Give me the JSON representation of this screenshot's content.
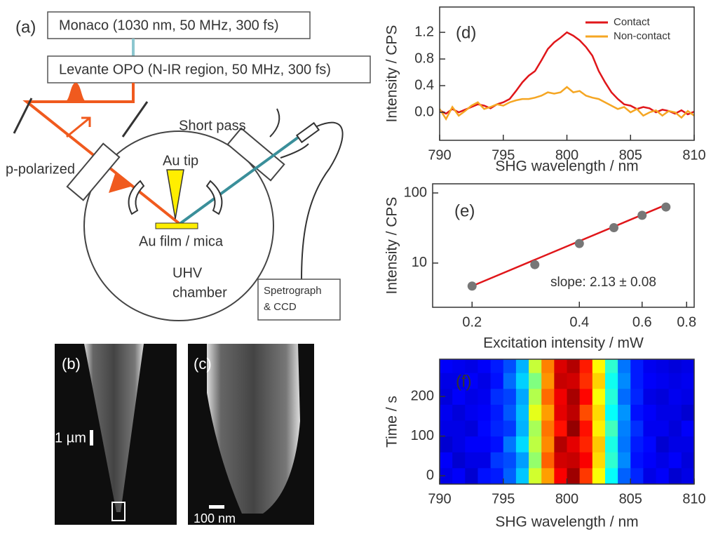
{
  "diagram": {
    "panel_label": "(a)",
    "box_monaco": "Monaco (1030 nm, 50 MHz, 300 fs)",
    "box_levante": "Levante OPO (N-IR region, 50 MHz, 300 fs)",
    "short_pass": "Short pass",
    "p_polarized": "p-polarized",
    "au_tip": "Au tip",
    "au_film": "Au film / mica",
    "uhv": "UHV",
    "chamber": "chamber",
    "spectrograph": "Spetrograph",
    "ccd": "& CCD"
  },
  "images": [
    {
      "panel_label": "(b)",
      "scale_bar": "1 µm"
    },
    {
      "panel_label": "(c)",
      "scale_bar": "100 nm"
    }
  ],
  "chart_data": [
    {
      "type": "line",
      "panel_label": "(d)",
      "xlabel": "SHG wavelength / nm",
      "ylabel": "Intensity / CPS",
      "legend": "upper right",
      "x": [
        790,
        790.5,
        791,
        791.5,
        792,
        792.5,
        793,
        793.5,
        794,
        794.5,
        795,
        795.5,
        796,
        796.5,
        797,
        797.5,
        798,
        798.5,
        799,
        799.5,
        800,
        800.5,
        801,
        801.5,
        802,
        802.5,
        803,
        803.5,
        804,
        804.5,
        805,
        805.5,
        806,
        806.5,
        807,
        807.5,
        808,
        808.5,
        809,
        809.5,
        810
      ],
      "xlim": [
        790,
        810
      ],
      "xticks": [
        790,
        795,
        800,
        805,
        810
      ],
      "ylim": [
        -0.42,
        1.58
      ],
      "yticks": [
        {
          "value": 0,
          "label": "0.0"
        },
        0.4,
        0.8,
        1.2
      ],
      "series": [
        {
          "name": "Contact",
          "color": "#e0161a",
          "values": [
            0.03,
            -0.02,
            0.05,
            0.0,
            0.04,
            0.08,
            0.12,
            0.1,
            0.06,
            0.12,
            0.15,
            0.2,
            0.32,
            0.45,
            0.55,
            0.62,
            0.78,
            0.95,
            1.05,
            1.12,
            1.2,
            1.15,
            1.08,
            0.98,
            0.85,
            0.62,
            0.45,
            0.3,
            0.2,
            0.12,
            0.1,
            0.05,
            0.08,
            0.06,
            0.0,
            0.04,
            0.02,
            -0.02,
            0.03,
            -0.03,
            0.01
          ]
        },
        {
          "name": "Non-contact",
          "color": "#f5a623",
          "values": [
            0.05,
            -0.1,
            0.08,
            -0.05,
            0.02,
            0.1,
            0.15,
            0.05,
            0.08,
            0.12,
            0.1,
            0.15,
            0.18,
            0.2,
            0.2,
            0.22,
            0.25,
            0.3,
            0.28,
            0.3,
            0.38,
            0.3,
            0.32,
            0.25,
            0.22,
            0.2,
            0.15,
            0.1,
            0.05,
            0.08,
            0.0,
            0.05,
            -0.05,
            0.0,
            0.03,
            -0.05,
            0.02,
            0.0,
            -0.08,
            0.02,
            -0.05
          ]
        }
      ]
    },
    {
      "type": "scatter",
      "panel_label": "(e)",
      "xlabel": "Excitation intensity / mW",
      "ylabel": "Intensity / CPS",
      "log": true,
      "xlim": [
        0.155,
        0.84
      ],
      "xticks": [
        0.2,
        0.4,
        0.6,
        0.8
      ],
      "ylim": [
        2.34,
        135
      ],
      "yticks": [
        10,
        100
      ],
      "series": [
        {
          "color": "#777777",
          "x": [
            0.2,
            0.3,
            0.4,
            0.5,
            0.6,
            0.7
          ],
          "values": [
            4.7,
            9.5,
            19,
            32,
            48,
            63
          ]
        }
      ],
      "fit": {
        "color": "#e0161a",
        "x": [
          0.2,
          0.7
        ],
        "values": [
          4.7,
          67.7
        ]
      },
      "annotation": "slope: 2.13 ± 0.08"
    },
    {
      "type": "heatmap",
      "panel_label": "(f)",
      "xlabel": "SHG wavelength / nm",
      "ylabel": "Time / s",
      "xlim": [
        790,
        810
      ],
      "xticks": [
        790,
        795,
        800,
        805,
        810
      ],
      "ylim": [
        -21,
        294
      ],
      "yticks": [
        0,
        100,
        200
      ],
      "x_bins": [
        790,
        791,
        792,
        793,
        794,
        795,
        796,
        797,
        798,
        799,
        800,
        801,
        802,
        803,
        804,
        805,
        806,
        807,
        808,
        809,
        810
      ],
      "y_bins": [
        -20,
        20,
        60,
        100,
        140,
        180,
        220,
        260,
        294
      ],
      "values": [
        [
          0.1,
          0.12,
          0.08,
          0.14,
          0.15,
          0.22,
          0.32,
          0.58,
          0.72,
          0.88,
          0.97,
          0.82,
          0.62,
          0.38,
          0.22,
          0.16,
          0.1,
          0.12,
          0.08,
          0.1
        ],
        [
          0.12,
          0.08,
          0.1,
          0.1,
          0.18,
          0.2,
          0.28,
          0.52,
          0.78,
          0.92,
          0.93,
          0.88,
          0.66,
          0.42,
          0.26,
          0.14,
          0.12,
          0.1,
          0.12,
          0.09
        ],
        [
          0.08,
          0.1,
          0.12,
          0.12,
          0.14,
          0.24,
          0.34,
          0.56,
          0.74,
          0.95,
          0.9,
          0.84,
          0.68,
          0.4,
          0.24,
          0.15,
          0.13,
          0.08,
          0.1,
          0.1
        ],
        [
          0.1,
          0.1,
          0.09,
          0.13,
          0.16,
          0.18,
          0.3,
          0.54,
          0.76,
          0.86,
          0.98,
          0.86,
          0.64,
          0.44,
          0.25,
          0.17,
          0.11,
          0.11,
          0.09,
          0.12
        ],
        [
          0.11,
          0.09,
          0.11,
          0.12,
          0.15,
          0.21,
          0.31,
          0.6,
          0.72,
          0.9,
          0.94,
          0.8,
          0.66,
          0.38,
          0.27,
          0.14,
          0.12,
          0.1,
          0.1,
          0.08
        ],
        [
          0.09,
          0.12,
          0.1,
          0.11,
          0.17,
          0.19,
          0.29,
          0.55,
          0.77,
          0.89,
          0.96,
          0.87,
          0.62,
          0.41,
          0.23,
          0.16,
          0.1,
          0.09,
          0.11,
          0.1
        ],
        [
          0.1,
          0.1,
          0.12,
          0.1,
          0.14,
          0.23,
          0.33,
          0.5,
          0.73,
          0.93,
          0.92,
          0.83,
          0.67,
          0.39,
          0.26,
          0.15,
          0.12,
          0.11,
          0.1,
          0.11
        ],
        [
          0.12,
          0.11,
          0.1,
          0.12,
          0.15,
          0.2,
          0.3,
          0.57,
          0.75,
          0.91,
          0.95,
          0.85,
          0.63,
          0.42,
          0.24,
          0.15,
          0.11,
          0.1,
          0.09,
          0.1
        ]
      ]
    }
  ]
}
